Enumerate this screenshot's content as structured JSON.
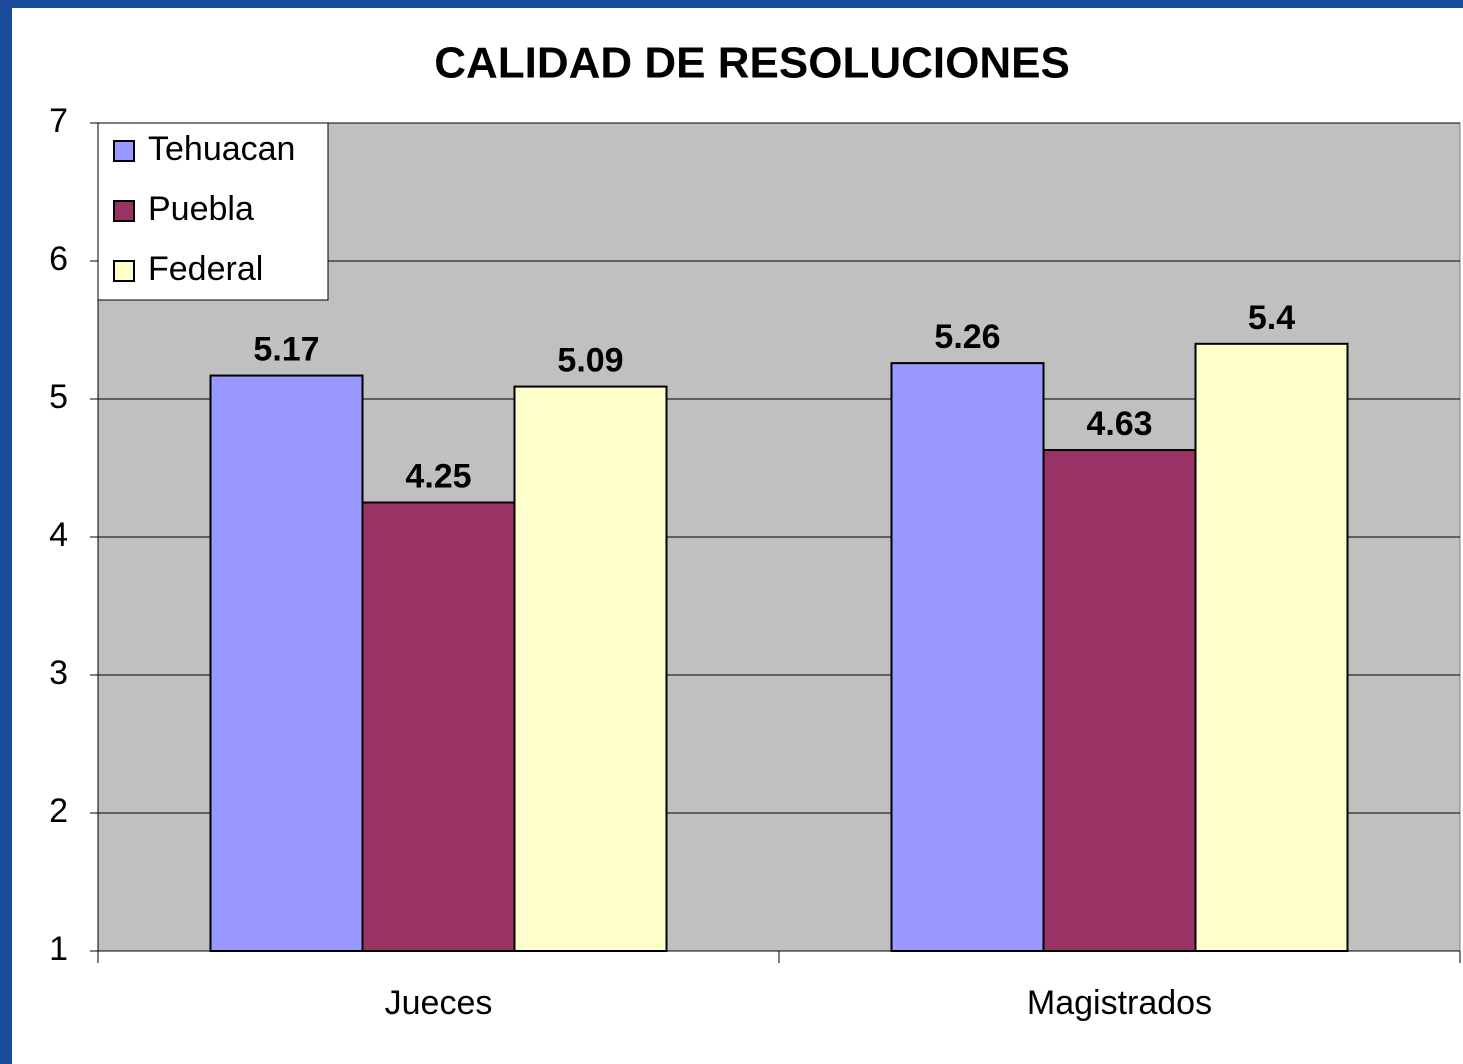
{
  "chart_data": {
    "type": "bar",
    "title": "CALIDAD DE RESOLUCIONES",
    "categories": [
      "Jueces",
      "Magistrados"
    ],
    "series": [
      {
        "name": "Tehuacan",
        "color": "#9999ff",
        "values": [
          5.17,
          5.26
        ]
      },
      {
        "name": "Puebla",
        "color": "#993366",
        "values": [
          4.25,
          4.63
        ]
      },
      {
        "name": "Federal",
        "color": "#ffffcc",
        "values": [
          5.09,
          5.4
        ]
      }
    ],
    "ylim": [
      1,
      7
    ],
    "yticks": [
      1,
      2,
      3,
      4,
      5,
      6,
      7
    ],
    "grid": true,
    "legend": "top-left"
  }
}
